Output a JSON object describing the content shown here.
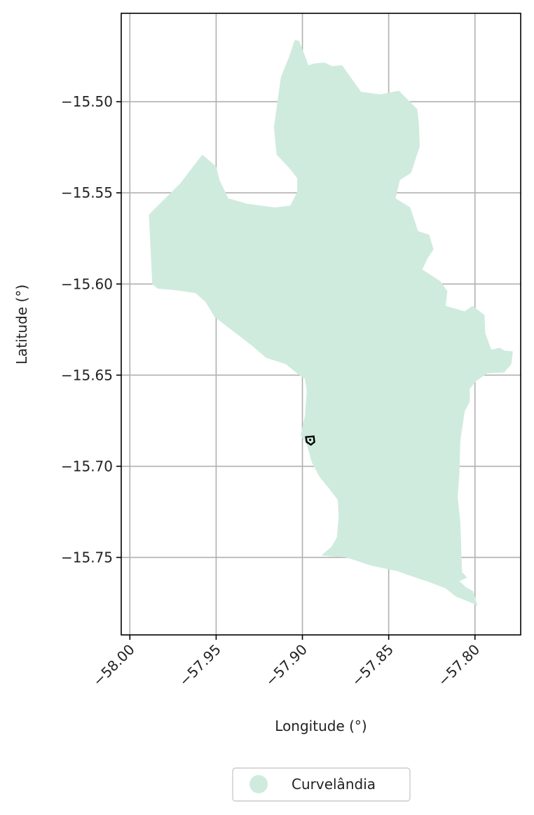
{
  "chart_data": {
    "type": "map",
    "title": "",
    "xlabel": "Longitude (°)",
    "ylabel": "Latitude (°)",
    "xlim": [
      -58.005,
      -57.7735
    ],
    "ylim": [
      -15.7925,
      -15.4515
    ],
    "x_ticks": [
      -58.0,
      -57.95,
      -57.9,
      -57.85,
      -57.8
    ],
    "x_tick_labels": [
      "−58.00",
      "−57.95",
      "−57.90",
      "−57.85",
      "−57.80"
    ],
    "y_ticks": [
      -15.5,
      -15.55,
      -15.6,
      -15.65,
      -15.7,
      -15.75
    ],
    "y_tick_labels": [
      "−15.50",
      "−15.55",
      "−15.60",
      "−15.65",
      "−15.70",
      "−15.75"
    ],
    "grid": true,
    "legend": {
      "position": "bottom-center",
      "entries": [
        {
          "label": "Curvelândia",
          "color": "#cfebde"
        }
      ]
    },
    "region": {
      "name": "Curvelândia",
      "fill": "#cfebde",
      "boundary": [
        [
          -57.9045,
          -15.4662
        ],
        [
          -57.902,
          -15.4665
        ],
        [
          -57.8995,
          -15.4725
        ],
        [
          -57.8965,
          -15.48
        ],
        [
          -57.893,
          -15.479
        ],
        [
          -57.887,
          -15.4785
        ],
        [
          -57.883,
          -15.4805
        ],
        [
          -57.877,
          -15.48
        ],
        [
          -57.866,
          -15.4945
        ],
        [
          -57.855,
          -15.496
        ],
        [
          -57.844,
          -15.494
        ],
        [
          -57.8335,
          -15.504
        ],
        [
          -57.8325,
          -15.5115
        ],
        [
          -57.832,
          -15.5245
        ],
        [
          -57.837,
          -15.539
        ],
        [
          -57.8435,
          -15.543
        ],
        [
          -57.846,
          -15.553
        ],
        [
          -57.8375,
          -15.558
        ],
        [
          -57.833,
          -15.571
        ],
        [
          -57.8265,
          -15.573
        ],
        [
          -57.824,
          -15.581
        ],
        [
          -57.8275,
          -15.586
        ],
        [
          -57.8305,
          -15.592
        ],
        [
          -57.82,
          -15.5985
        ],
        [
          -57.816,
          -15.604
        ],
        [
          -57.817,
          -15.612
        ],
        [
          -57.806,
          -15.615
        ],
        [
          -57.8015,
          -15.612
        ],
        [
          -57.7945,
          -15.617
        ],
        [
          -57.794,
          -15.627
        ],
        [
          -57.7905,
          -15.636
        ],
        [
          -57.7855,
          -15.635
        ],
        [
          -57.783,
          -15.6365
        ],
        [
          -57.778,
          -15.637
        ],
        [
          -57.779,
          -15.644
        ],
        [
          -57.783,
          -15.6485
        ],
        [
          -57.793,
          -15.649
        ],
        [
          -57.799,
          -15.653
        ],
        [
          -57.803,
          -15.6575
        ],
        [
          -57.803,
          -15.6645
        ],
        [
          -57.806,
          -15.67
        ],
        [
          -57.8085,
          -15.686
        ],
        [
          -57.809,
          -15.704
        ],
        [
          -57.81,
          -15.717
        ],
        [
          -57.8085,
          -15.73
        ],
        [
          -57.808,
          -15.744
        ],
        [
          -57.8075,
          -15.758
        ],
        [
          -57.8045,
          -15.761
        ],
        [
          -57.809,
          -15.763
        ],
        [
          -57.805,
          -15.7665
        ],
        [
          -57.801,
          -15.7685
        ],
        [
          -57.7985,
          -15.7765
        ],
        [
          -57.803,
          -15.7745
        ],
        [
          -57.811,
          -15.7715
        ],
        [
          -57.817,
          -15.767
        ],
        [
          -57.8265,
          -15.7635
        ],
        [
          -57.8345,
          -15.761
        ],
        [
          -57.845,
          -15.7575
        ],
        [
          -57.86,
          -15.7545
        ],
        [
          -57.8745,
          -15.75
        ],
        [
          -57.889,
          -15.749
        ],
        [
          -57.883,
          -15.744
        ],
        [
          -57.88,
          -15.739
        ],
        [
          -57.879,
          -15.728
        ],
        [
          -57.8795,
          -15.7185
        ],
        [
          -57.8835,
          -15.7135
        ],
        [
          -57.89,
          -15.706
        ],
        [
          -57.8945,
          -15.698
        ],
        [
          -57.8975,
          -15.688
        ],
        [
          -57.901,
          -15.683
        ],
        [
          -57.8985,
          -15.672
        ],
        [
          -57.8975,
          -15.659
        ],
        [
          -57.8985,
          -15.652
        ],
        [
          -57.9025,
          -15.6495
        ],
        [
          -57.9095,
          -15.644
        ],
        [
          -57.921,
          -15.6405
        ],
        [
          -57.929,
          -15.634
        ],
        [
          -57.94,
          -15.626
        ],
        [
          -57.951,
          -15.618
        ],
        [
          -57.956,
          -15.61
        ],
        [
          -57.962,
          -15.605
        ],
        [
          -57.9725,
          -15.6035
        ],
        [
          -57.984,
          -15.6025
        ],
        [
          -57.987,
          -15.6
        ],
        [
          -57.989,
          -15.562
        ],
        [
          -57.971,
          -15.545
        ],
        [
          -57.958,
          -15.529
        ],
        [
          -57.95,
          -15.5355
        ],
        [
          -57.948,
          -15.543
        ],
        [
          -57.943,
          -15.553
        ],
        [
          -57.932,
          -15.556
        ],
        [
          -57.916,
          -15.558
        ],
        [
          -57.907,
          -15.557
        ],
        [
          -57.903,
          -15.5495
        ],
        [
          -57.903,
          -15.542
        ],
        [
          -57.9075,
          -15.5365
        ],
        [
          -57.915,
          -15.529
        ],
        [
          -57.9165,
          -15.514
        ],
        [
          -57.9125,
          -15.4865
        ],
        [
          -57.908,
          -15.476
        ],
        [
          -57.9045,
          -15.4662
        ]
      ]
    },
    "point_marker": {
      "lon": -57.8955,
      "lat": -15.6855,
      "color": "#000000"
    }
  }
}
